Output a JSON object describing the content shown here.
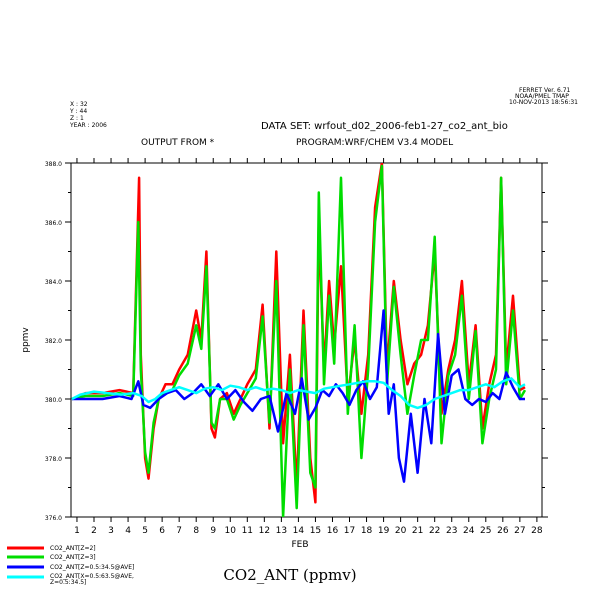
{
  "header": {
    "ferret_version": "FERRET Ver. 6.71",
    "organization": "NOAA/PMEL TMAP",
    "timestamp": "10-NOV-2013 18:56:31",
    "coords": [
      "X : 32",
      "Y : 44",
      "Z : 1",
      "YEAR : 2006"
    ],
    "dataset": "DATA SET: wrfout_d02_2006-feb1-27_co2_ant_bio",
    "output_from": "OUTPUT FROM *",
    "program": "PROGRAM:WRF/CHEM V3.4 MODEL"
  },
  "footer": {
    "big_title": "CO2_ANT (ppmv)",
    "legend": [
      {
        "label": "CO2_ANT[Z=2]",
        "color": "#ff0000"
      },
      {
        "label": "CO2_ANT[Z=3]",
        "color": "#00dd00"
      },
      {
        "label": "CO2_ANT[Z=0.5:34.5@AVE]",
        "color": "#0000ff"
      },
      {
        "label": "CO2_ANT[X=0.5:63.5@AVE,",
        "label2": "Z=0.5:34.5]",
        "color": "#00ffff"
      }
    ]
  },
  "chart_data": {
    "type": "line",
    "xlabel": "FEB",
    "ylabel": "ppmv",
    "xlim": [
      0.65,
      28.3
    ],
    "ylim": [
      376.0,
      388.0
    ],
    "x_ticks": [
      1,
      2,
      3,
      4,
      5,
      6,
      7,
      8,
      9,
      10,
      11,
      12,
      13,
      14,
      15,
      16,
      17,
      18,
      19,
      20,
      21,
      22,
      23,
      24,
      25,
      26,
      27,
      28
    ],
    "y_ticks": [
      "376.0",
      "378.0",
      "380.0",
      "382.0",
      "384.0",
      "386.0",
      "388.0"
    ],
    "series": [
      {
        "name": "CO2_ANT[Z=2]",
        "color": "#ff0000",
        "x": [
          0.7,
          1.5,
          2.5,
          3.5,
          4.3,
          4.65,
          4.75,
          5.0,
          5.2,
          5.5,
          5.8,
          6.2,
          6.6,
          7.0,
          7.5,
          8.0,
          8.3,
          8.6,
          8.9,
          9.1,
          9.4,
          9.8,
          10.2,
          10.6,
          11.0,
          11.5,
          11.9,
          12.3,
          12.7,
          13.1,
          13.5,
          13.9,
          14.3,
          14.7,
          15.0,
          15.2,
          15.5,
          15.8,
          16.1,
          16.5,
          16.9,
          17.3,
          17.7,
          18.1,
          18.5,
          18.9,
          19.2,
          19.6,
          20.0,
          20.4,
          20.8,
          21.2,
          21.6,
          22.0,
          22.4,
          22.8,
          23.2,
          23.6,
          24.0,
          24.4,
          24.8,
          25.2,
          25.6,
          25.9,
          26.2,
          26.6,
          27.0,
          27.3
        ],
        "y": [
          380.0,
          380.2,
          380.2,
          380.3,
          380.2,
          387.5,
          381.5,
          378.0,
          377.3,
          379.0,
          380.0,
          380.5,
          380.5,
          381.0,
          381.5,
          383.0,
          382.0,
          385.0,
          379.0,
          378.7,
          380.0,
          380.2,
          379.5,
          380.0,
          380.5,
          381.0,
          383.2,
          379.0,
          385.0,
          378.5,
          381.5,
          377.0,
          383.0,
          378.0,
          376.5,
          386.0,
          381.0,
          384.0,
          381.8,
          384.5,
          380.0,
          382.0,
          379.5,
          381.5,
          386.5,
          388.0,
          381.0,
          384.0,
          382.0,
          380.5,
          381.2,
          381.5,
          382.5,
          385.0,
          379.5,
          381.0,
          382.0,
          384.0,
          380.5,
          382.5,
          379.0,
          380.5,
          381.5,
          387.5,
          381.0,
          383.5,
          380.3,
          380.4
        ]
      },
      {
        "name": "CO2_ANT[Z=3]",
        "color": "#00dd00",
        "x": [
          0.7,
          1.5,
          2.5,
          3.5,
          4.3,
          4.6,
          4.75,
          5.0,
          5.2,
          5.5,
          5.8,
          6.2,
          6.6,
          7.0,
          7.5,
          8.0,
          8.3,
          8.6,
          8.9,
          9.1,
          9.4,
          9.8,
          10.2,
          10.6,
          11.0,
          11.5,
          11.9,
          12.3,
          12.7,
          13.1,
          13.5,
          13.9,
          14.3,
          14.7,
          15.0,
          15.2,
          15.5,
          15.8,
          16.1,
          16.5,
          16.9,
          17.3,
          17.7,
          18.1,
          18.5,
          18.9,
          19.2,
          19.6,
          20.0,
          20.4,
          20.8,
          21.2,
          21.6,
          22.0,
          22.4,
          22.8,
          23.2,
          23.6,
          24.0,
          24.4,
          24.8,
          25.2,
          25.6,
          25.9,
          26.2,
          26.6,
          27.0,
          27.3
        ],
        "y": [
          380.0,
          380.1,
          380.1,
          380.2,
          380.1,
          386.0,
          381.0,
          378.2,
          377.5,
          379.2,
          380.0,
          380.2,
          380.3,
          380.8,
          381.2,
          382.5,
          381.7,
          384.5,
          379.2,
          379.0,
          380.0,
          380.0,
          379.3,
          379.8,
          380.2,
          380.7,
          382.8,
          379.2,
          384.0,
          376.0,
          381.0,
          376.3,
          382.5,
          377.5,
          377.0,
          387.0,
          380.5,
          383.5,
          381.2,
          387.5,
          379.5,
          382.5,
          378.0,
          381.0,
          386.0,
          387.9,
          380.5,
          383.8,
          381.5,
          379.5,
          380.8,
          382.0,
          382.0,
          385.5,
          378.5,
          380.8,
          381.5,
          383.5,
          380.0,
          382.3,
          378.5,
          380.0,
          381.0,
          387.5,
          380.5,
          383.0,
          380.0,
          380.3
        ]
      },
      {
        "name": "CO2_ANT[Z=0.5:34.5@AVE]",
        "color": "#0000ff",
        "x": [
          0.7,
          1.5,
          2.5,
          3.5,
          4.2,
          4.6,
          4.9,
          5.3,
          5.8,
          6.3,
          6.8,
          7.3,
          7.8,
          8.3,
          8.8,
          9.3,
          9.8,
          10.3,
          10.8,
          11.3,
          11.8,
          12.3,
          12.8,
          13.3,
          13.8,
          14.2,
          14.6,
          15.0,
          15.4,
          15.8,
          16.2,
          16.6,
          17.0,
          17.4,
          17.8,
          18.2,
          18.6,
          19.0,
          19.3,
          19.6,
          19.9,
          20.2,
          20.6,
          21.0,
          21.4,
          21.8,
          22.2,
          22.6,
          23.0,
          23.4,
          23.8,
          24.2,
          24.6,
          25.0,
          25.4,
          25.8,
          26.2,
          26.6,
          27.0,
          27.3
        ],
        "y": [
          380.0,
          380.0,
          380.0,
          380.1,
          380.0,
          380.6,
          379.8,
          379.7,
          380.0,
          380.2,
          380.3,
          380.0,
          380.2,
          380.5,
          380.1,
          380.5,
          380.0,
          380.3,
          379.9,
          379.6,
          380.0,
          380.1,
          378.9,
          380.2,
          379.5,
          380.7,
          379.3,
          379.7,
          380.3,
          380.1,
          380.5,
          380.2,
          379.8,
          380.3,
          380.6,
          380.0,
          380.4,
          383.0,
          379.5,
          380.5,
          378.0,
          377.2,
          379.5,
          377.5,
          380.0,
          378.5,
          382.2,
          379.5,
          380.8,
          381.0,
          380.0,
          379.8,
          380.0,
          379.9,
          380.2,
          380.0,
          380.9,
          380.4,
          380.0,
          380.0
        ]
      },
      {
        "name": "CO2_ANT[X=0.5:63.5@AVE, Z=0.5:34.5]",
        "color": "#00ffff",
        "x": [
          0.7,
          1.2,
          2.0,
          2.8,
          3.6,
          4.3,
          4.8,
          5.2,
          5.6,
          6.0,
          6.5,
          7.0,
          7.5,
          8.0,
          8.5,
          9.0,
          9.5,
          10.0,
          10.5,
          11.0,
          11.5,
          12.0,
          12.5,
          13.0,
          13.5,
          14.0,
          14.5,
          15.0,
          15.5,
          16.0,
          16.5,
          17.0,
          17.5,
          18.0,
          18.5,
          19.0,
          19.5,
          20.0,
          20.5,
          21.0,
          21.5,
          22.0,
          22.5,
          23.0,
          23.5,
          24.0,
          24.5,
          25.0,
          25.5,
          26.0,
          26.5,
          27.0,
          27.3
        ],
        "y": [
          380.0,
          380.15,
          380.25,
          380.2,
          380.15,
          380.2,
          380.1,
          379.9,
          380.0,
          380.2,
          380.3,
          380.4,
          380.3,
          380.2,
          380.35,
          380.4,
          380.3,
          380.45,
          380.4,
          380.3,
          380.4,
          380.3,
          380.35,
          380.3,
          380.2,
          380.3,
          380.25,
          380.2,
          380.35,
          380.4,
          380.45,
          380.5,
          380.55,
          380.6,
          380.6,
          380.55,
          380.3,
          380.1,
          379.8,
          379.7,
          379.8,
          380.0,
          380.1,
          380.2,
          380.3,
          380.3,
          380.4,
          380.5,
          380.4,
          380.6,
          380.7,
          380.4,
          380.5
        ]
      }
    ]
  }
}
